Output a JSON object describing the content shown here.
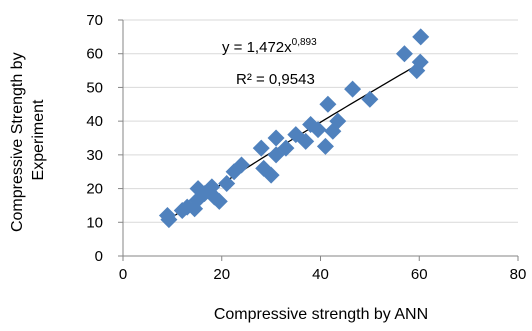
{
  "chart_data": {
    "type": "scatter",
    "title": "",
    "xlabel": "Compressive strength by ANN",
    "ylabel_lines": [
      "Compressive Strength by",
      "Experiment"
    ],
    "xlim": [
      0,
      80
    ],
    "ylim": [
      0,
      70
    ],
    "x_ticks": [
      0,
      20,
      40,
      60,
      80
    ],
    "y_ticks": [
      0,
      10,
      20,
      30,
      40,
      50,
      60,
      70
    ],
    "grid": "horizontal",
    "marker": "diamond",
    "colors": {
      "points": "#4F81BD",
      "trendline": "#000000",
      "grid": "#D9D9D9",
      "axis": "#868686"
    },
    "points": [
      {
        "x": 9.0,
        "y": 12.0
      },
      {
        "x": 9.3,
        "y": 10.8
      },
      {
        "x": 12.0,
        "y": 13.5
      },
      {
        "x": 13.0,
        "y": 14.5
      },
      {
        "x": 14.5,
        "y": 14.0
      },
      {
        "x": 15.0,
        "y": 16.5
      },
      {
        "x": 15.2,
        "y": 20.0
      },
      {
        "x": 16.5,
        "y": 18.5
      },
      {
        "x": 18.0,
        "y": 20.5
      },
      {
        "x": 18.5,
        "y": 17.5
      },
      {
        "x": 19.5,
        "y": 16.2
      },
      {
        "x": 21.0,
        "y": 21.5
      },
      {
        "x": 22.5,
        "y": 25.0
      },
      {
        "x": 24.0,
        "y": 27.0
      },
      {
        "x": 28.0,
        "y": 32.0
      },
      {
        "x": 28.5,
        "y": 26.0
      },
      {
        "x": 30.0,
        "y": 24.0
      },
      {
        "x": 31.0,
        "y": 35.0
      },
      {
        "x": 31.0,
        "y": 30.0
      },
      {
        "x": 33.0,
        "y": 32.0
      },
      {
        "x": 35.0,
        "y": 36.0
      },
      {
        "x": 37.0,
        "y": 34.0
      },
      {
        "x": 38.0,
        "y": 39.0
      },
      {
        "x": 39.5,
        "y": 37.5
      },
      {
        "x": 41.0,
        "y": 32.5
      },
      {
        "x": 41.5,
        "y": 45.0
      },
      {
        "x": 42.5,
        "y": 37.0
      },
      {
        "x": 43.5,
        "y": 40.0
      },
      {
        "x": 46.5,
        "y": 49.5
      },
      {
        "x": 50.0,
        "y": 46.5
      },
      {
        "x": 57.0,
        "y": 60.0
      },
      {
        "x": 59.5,
        "y": 55.0
      },
      {
        "x": 60.2,
        "y": 57.5
      },
      {
        "x": 60.3,
        "y": 65.0
      }
    ],
    "trendline": {
      "type": "power",
      "coefficient": 1.472,
      "exponent": 0.893,
      "x_range": [
        9,
        60.5
      ]
    },
    "annotations": {
      "equation_base": "y = 1,472x",
      "equation_exponent": "0,893",
      "r_squared": "R² = 0,9543"
    }
  }
}
